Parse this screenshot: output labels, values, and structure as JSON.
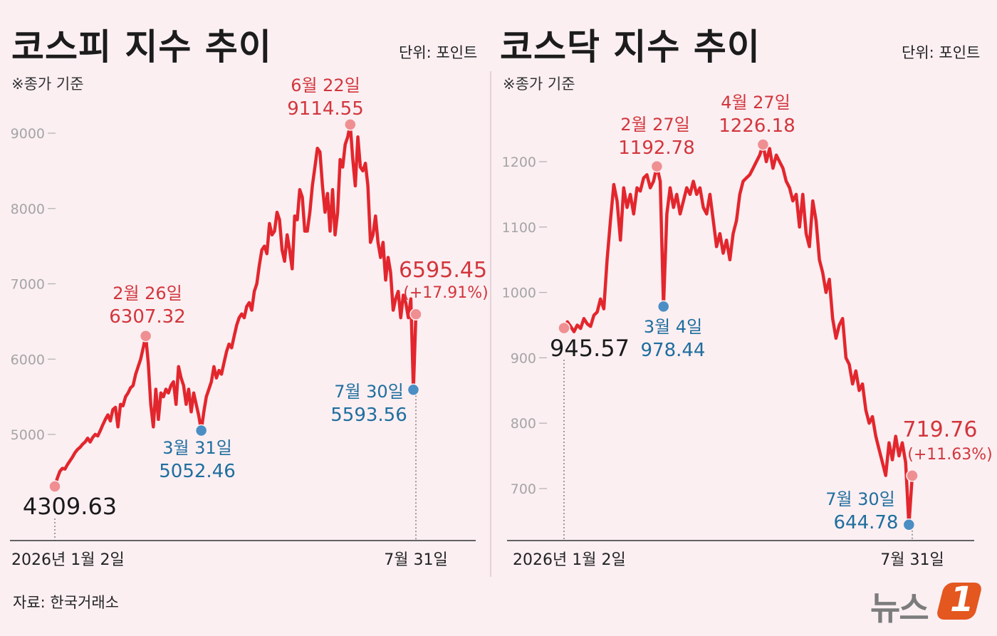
{
  "colors": {
    "line": "#e3262d",
    "red_label": "#d2363c",
    "blue_label": "#1f6e9e",
    "blue_dot": "#4a8ec4",
    "red_dot": "#ef8f92"
  },
  "header": {
    "kospi_title": "코스피 지수 추이",
    "kosdaq_title": "코스닥 지수 추이",
    "unit": "단위: 포인트",
    "note": "※종가 기준"
  },
  "footer": {
    "source": "자료: 한국거래소",
    "logo_text": "뉴스",
    "logo_mark": "1"
  },
  "chart_data": [
    {
      "type": "line",
      "title": "코스피 지수 추이",
      "ylim": [
        4000,
        9300
      ],
      "yticks": [
        5000,
        6000,
        7000,
        8000,
        9000
      ],
      "x_start_label": "2026년 1월 2일",
      "x_end_label": "7월 31일",
      "series": [
        {
          "values": [
            4309.63,
            4420,
            4510,
            4550,
            4540,
            4600,
            4650,
            4700,
            4760,
            4800,
            4830,
            4870,
            4900,
            4950,
            4900,
            4960,
            5000,
            4980,
            5050,
            5130,
            5200,
            5260,
            5180,
            5330,
            5360,
            5100,
            5400,
            5380,
            5500,
            5550,
            5620,
            5650,
            5800,
            5900,
            6000,
            6150,
            6307.32,
            5950,
            5400,
            5100,
            5600,
            5200,
            5550,
            5500,
            5600,
            5550,
            5650,
            5700,
            5400,
            5900,
            5750,
            5650,
            5400,
            5600,
            5300,
            5550,
            5400,
            5250,
            5052.46,
            5300,
            5500,
            5600,
            5700,
            5900,
            5750,
            5850,
            5800,
            5950,
            6100,
            6200,
            6150,
            6300,
            6450,
            6550,
            6600,
            6550,
            6700,
            6750,
            6650,
            6900,
            7000,
            7250,
            7450,
            7500,
            7400,
            7800,
            7650,
            7700,
            7950,
            7850,
            7450,
            7300,
            7650,
            7450,
            7200,
            7900,
            7850,
            8250,
            8150,
            7700,
            7700,
            7950,
            8300,
            8550,
            8800,
            8750,
            8300,
            7950,
            8200,
            7700,
            8250,
            7650,
            7950,
            8650,
            8550,
            8850,
            8950,
            9114.55,
            8650,
            8300,
            8950,
            8550,
            8500,
            8600,
            8300,
            7550,
            7650,
            7900,
            7550,
            7350,
            7550,
            7050,
            7350,
            7150,
            6650,
            6800,
            6900,
            6550,
            6850,
            6750,
            6550,
            6800,
            5593.56,
            6595.45
          ]
        }
      ],
      "annotations": [
        {
          "date": "2026년 1월 2일",
          "value": "4309.63",
          "color": "black"
        },
        {
          "date": "2월 26일",
          "value": "6307.32",
          "color": "red"
        },
        {
          "date": "3월 31일",
          "value": "5052.46",
          "color": "blue"
        },
        {
          "date": "6월 22일",
          "value": "9114.55",
          "color": "red"
        },
        {
          "date": "7월 30일",
          "value": "5593.56",
          "color": "blue"
        },
        {
          "date": "7월 31일",
          "value": "6595.45",
          "change": "(+17.91%)",
          "color": "red"
        }
      ]
    },
    {
      "type": "line",
      "title": "코스닥 지수 추이",
      "ylim": [
        620,
        1300
      ],
      "yticks": [
        700,
        800,
        900,
        1000,
        1100,
        1200
      ],
      "x_start_label": "2026년 1월 2일",
      "x_end_label": "7월 31일",
      "series": [
        {
          "values": [
            945.57,
            955,
            948,
            940,
            950,
            945,
            960,
            952,
            948,
            965,
            970,
            990,
            975,
            1050,
            1110,
            1165,
            1140,
            1080,
            1160,
            1130,
            1150,
            1120,
            1160,
            1155,
            1175,
            1180,
            1160,
            1170,
            1192.78,
            1170,
            978.44,
            1120,
            1160,
            1130,
            1150,
            1120,
            1140,
            1160,
            1150,
            1170,
            1150,
            1160,
            1130,
            1120,
            1150,
            1110,
            1070,
            1090,
            1060,
            1080,
            1050,
            1090,
            1110,
            1150,
            1170,
            1175,
            1180,
            1190,
            1200,
            1210,
            1226.18,
            1200,
            1220,
            1190,
            1210,
            1200,
            1190,
            1170,
            1160,
            1140,
            1150,
            1100,
            1150,
            1090,
            1070,
            1140,
            1110,
            1050,
            1030,
            1000,
            1020,
            960,
            930,
            950,
            960,
            900,
            890,
            860,
            880,
            850,
            860,
            820,
            800,
            810,
            780,
            760,
            740,
            720,
            770,
            744,
            780,
            750,
            770,
            740,
            644.78,
            719.76
          ]
        }
      ],
      "annotations": [
        {
          "date": "2026년 1월 2일",
          "value": "945.57",
          "color": "black"
        },
        {
          "date": "2월 27일",
          "value": "1192.78",
          "color": "red"
        },
        {
          "date": "3월 4일",
          "value": "978.44",
          "color": "blue"
        },
        {
          "date": "4월 27일",
          "value": "1226.18",
          "color": "red"
        },
        {
          "date": "7월 30일",
          "value": "644.78",
          "color": "blue"
        },
        {
          "date": "7월 31일",
          "value": "719.76",
          "change": "(+11.63%)",
          "color": "red"
        }
      ]
    }
  ]
}
